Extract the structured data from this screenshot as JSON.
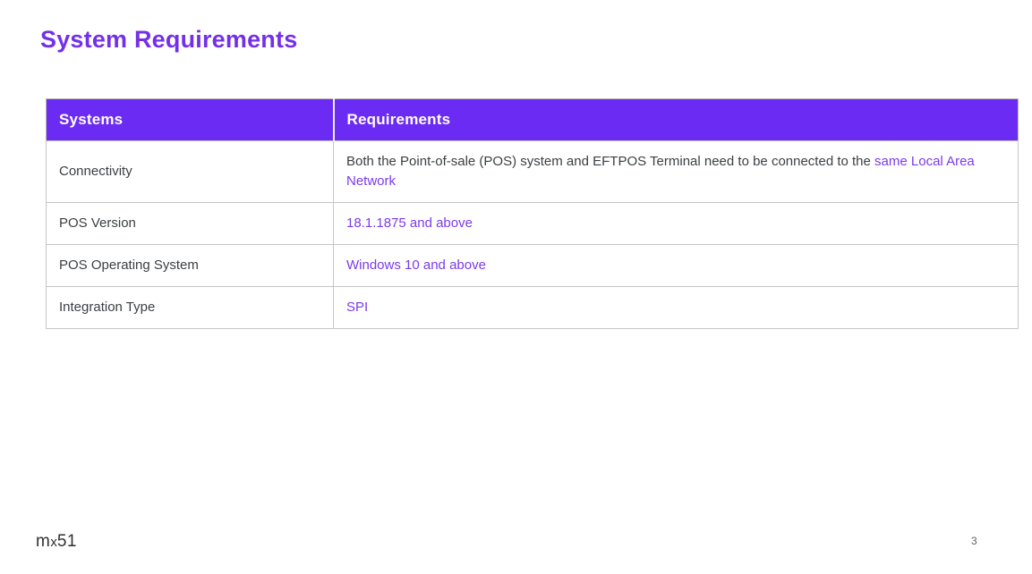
{
  "page": {
    "title": "System Requirements",
    "footer_logo_m": "m",
    "footer_logo_x": "x",
    "footer_logo_51": "51",
    "page_number": "3"
  },
  "colors": {
    "header_background": "#6C2BF2",
    "title_text": "#7430E8",
    "link_text": "#7B3BED",
    "body_text": "#3C4043",
    "table_border": "#C6C6C6"
  },
  "table": {
    "headers": [
      "Systems",
      "Requirements"
    ],
    "rows": [
      {
        "system": "Connectivity",
        "requirement_prefix": "Both the Point-of-sale (POS) system and EFTPOS Terminal need to be connected to the ",
        "requirement_link": "same Local Area Network"
      },
      {
        "system": "POS Version",
        "requirement_prefix": "",
        "requirement_link": "18.1.1875 and above"
      },
      {
        "system": "POS Operating System",
        "requirement_prefix": "",
        "requirement_link": "Windows 10 and above"
      },
      {
        "system": "Integration Type",
        "requirement_prefix": "",
        "requirement_link": "SPI"
      }
    ]
  }
}
